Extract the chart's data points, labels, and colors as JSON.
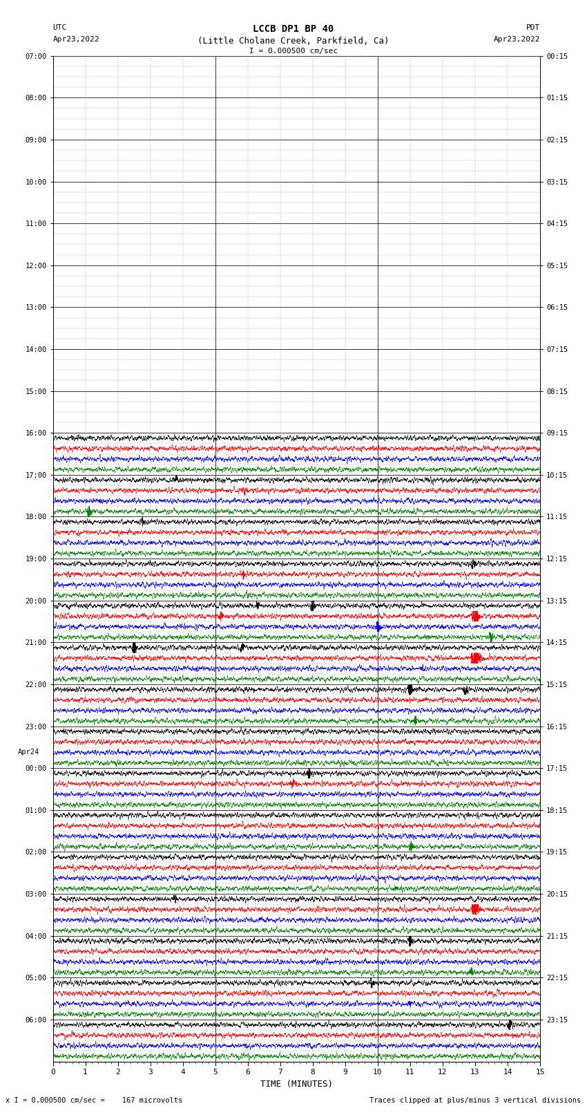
{
  "title_line1": "LCCB DP1 BP 40",
  "title_line2": "(Little Cholane Creek, Parkfield, Ca)",
  "scale_label": "I = 0.000500 cm/sec",
  "left_label_top": "UTC",
  "left_label_date": "Apr23,2022",
  "right_label_top": "PDT",
  "right_label_date": "Apr23,2022",
  "bottom_label": "TIME (MINUTES)",
  "footer_left": "x I = 0.000500 cm/sec =    167 microvolts",
  "footer_right": "Traces clipped at plus/minus 3 vertical divisions",
  "utc_hour_labels": [
    "07:00",
    "08:00",
    "09:00",
    "10:00",
    "11:00",
    "12:00",
    "13:00",
    "14:00",
    "15:00",
    "16:00",
    "17:00",
    "18:00",
    "19:00",
    "20:00",
    "21:00",
    "22:00",
    "23:00",
    "00:00",
    "01:00",
    "02:00",
    "03:00",
    "04:00",
    "05:00",
    "06:00"
  ],
  "pdt_hour_labels": [
    "00:15",
    "01:15",
    "02:15",
    "03:15",
    "04:15",
    "05:15",
    "06:15",
    "07:15",
    "08:15",
    "09:15",
    "10:15",
    "11:15",
    "12:15",
    "13:15",
    "14:15",
    "15:15",
    "16:15",
    "17:15",
    "18:15",
    "19:15",
    "20:15",
    "21:15",
    "22:15",
    "23:15"
  ],
  "apr24_row_idx": 40,
  "n_total_rows": 96,
  "n_quiet_rows": 36,
  "colors_cycle": [
    "black",
    "red",
    "blue",
    "green"
  ],
  "bg_color": "white",
  "grid_major_color": "#000000",
  "grid_minor_color": "#888888",
  "active_noise_amplitude": 0.28,
  "xlim": [
    0,
    15
  ]
}
